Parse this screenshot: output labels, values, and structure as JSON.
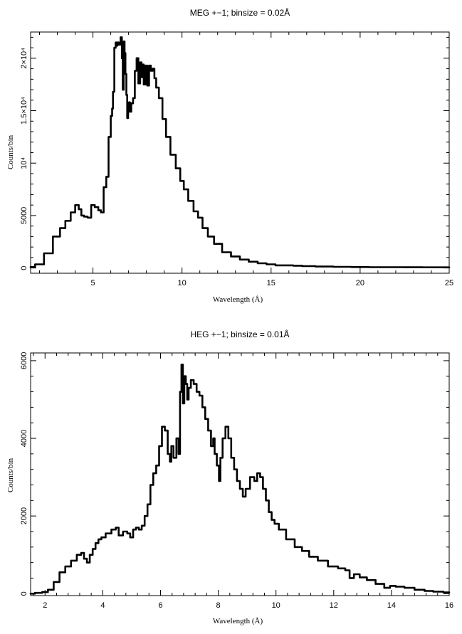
{
  "chart_data": [
    {
      "type": "line",
      "title": "MEG +−1; binsize = 0.02Å",
      "xlabel": "Wavelength (Å)",
      "ylabel": "Counts/bin",
      "xlim": [
        1.5,
        25
      ],
      "ylim": [
        -500,
        22500
      ],
      "xticks": [
        5,
        10,
        15,
        20,
        25
      ],
      "xtick_labels": [
        "5",
        "10",
        "15",
        "20",
        "25"
      ],
      "yticks": [
        0,
        5000,
        10000,
        15000,
        20000
      ],
      "ytick_labels": [
        "0",
        "5000",
        "10⁴",
        "1.5×10⁴",
        "2×10⁴"
      ],
      "grid": false,
      "legend": "none",
      "series": [
        {
          "x": [
            1.5,
            2.0,
            2.5,
            3.0,
            3.3,
            3.6,
            3.9,
            4.1,
            4.3,
            4.4,
            4.6,
            4.8,
            5.0,
            5.2,
            5.4,
            5.5,
            5.7,
            5.8,
            5.95,
            6.05,
            6.1,
            6.15,
            6.25,
            6.3,
            6.35,
            6.4,
            6.5,
            6.6,
            6.65,
            6.7,
            6.75,
            6.8,
            6.85,
            6.9,
            6.95,
            7.0,
            7.05,
            7.1,
            7.2,
            7.3,
            7.4,
            7.5,
            7.6,
            7.7,
            7.75,
            7.8,
            7.9,
            8.0,
            8.1,
            8.2,
            8.3,
            8.4,
            8.5,
            8.6,
            8.8,
            9.0,
            9.2,
            9.5,
            9.8,
            10.0,
            10.2,
            10.5,
            10.8,
            11.0,
            11.3,
            11.6,
            12.0,
            12.5,
            13.0,
            13.5,
            14.0,
            14.5,
            15.0,
            15.5,
            16.0,
            16.5,
            17.0,
            18.0,
            19.0,
            20.0,
            21.0,
            22.0,
            23.0,
            24.0,
            25.0
          ],
          "y": [
            100,
            350,
            1400,
            3000,
            3800,
            4500,
            5300,
            6000,
            5600,
            5000,
            4900,
            4800,
            6000,
            5800,
            5500,
            5300,
            7700,
            8700,
            12500,
            14500,
            15200,
            16800,
            21000,
            21500,
            21200,
            21500,
            21300,
            22000,
            20000,
            17000,
            21600,
            20500,
            18500,
            16500,
            14300,
            15600,
            15800,
            14900,
            15700,
            16200,
            18800,
            20000,
            17600,
            19600,
            18200,
            19400,
            17500,
            19300,
            17400,
            19300,
            18800,
            19000,
            18100,
            17200,
            16200,
            14200,
            12500,
            10800,
            9500,
            8300,
            7500,
            6400,
            5400,
            4800,
            3800,
            3000,
            2300,
            1500,
            1100,
            800,
            600,
            450,
            350,
            250,
            250,
            220,
            180,
            140,
            110,
            90,
            80,
            75,
            70,
            65,
            60
          ]
        }
      ]
    },
    {
      "type": "line",
      "title": "HEG +−1; binsize = 0.01Å",
      "xlabel": "Wavelength (Å)",
      "ylabel": "Counts/bin",
      "xlim": [
        1.5,
        16
      ],
      "ylim": [
        -50,
        6200
      ],
      "xticks": [
        2,
        4,
        6,
        8,
        10,
        12,
        14,
        16
      ],
      "xtick_labels": [
        "2",
        "4",
        "6",
        "8",
        "10",
        "12",
        "14",
        "16"
      ],
      "yticks": [
        0,
        2000,
        4000,
        6000
      ],
      "ytick_labels": [
        "0",
        "2000",
        "4000",
        "6000"
      ],
      "grid": false,
      "legend": "none",
      "series": [
        {
          "x": [
            1.5,
            1.8,
            2.0,
            2.2,
            2.4,
            2.6,
            2.8,
            3.0,
            3.2,
            3.3,
            3.4,
            3.5,
            3.6,
            3.7,
            3.8,
            3.9,
            4.0,
            4.2,
            4.4,
            4.5,
            4.6,
            4.8,
            4.9,
            5.0,
            5.1,
            5.2,
            5.3,
            5.4,
            5.5,
            5.6,
            5.7,
            5.8,
            5.9,
            6.0,
            6.1,
            6.2,
            6.3,
            6.35,
            6.4,
            6.5,
            6.6,
            6.65,
            6.7,
            6.75,
            6.8,
            6.85,
            6.9,
            6.95,
            7.0,
            7.1,
            7.2,
            7.3,
            7.4,
            7.5,
            7.6,
            7.7,
            7.8,
            7.85,
            7.9,
            8.0,
            8.05,
            8.1,
            8.2,
            8.3,
            8.4,
            8.5,
            8.6,
            8.7,
            8.8,
            8.9,
            9.0,
            9.2,
            9.3,
            9.4,
            9.5,
            9.6,
            9.7,
            9.8,
            9.9,
            10.0,
            10.2,
            10.5,
            10.8,
            11.0,
            11.3,
            11.6,
            12.0,
            12.3,
            12.5,
            12.6,
            12.8,
            13.0,
            13.3,
            13.6,
            13.9,
            14.0,
            14.3,
            14.6,
            15.0,
            15.3,
            15.6,
            16.0
          ],
          "y": [
            0,
            20,
            40,
            100,
            300,
            550,
            700,
            850,
            1000,
            1050,
            900,
            800,
            1000,
            1150,
            1300,
            1400,
            1450,
            1550,
            1650,
            1700,
            1500,
            1600,
            1550,
            1450,
            1650,
            1700,
            1650,
            1750,
            2000,
            2300,
            2800,
            3100,
            3300,
            3800,
            4300,
            4200,
            3600,
            3400,
            3800,
            3500,
            4000,
            3600,
            5200,
            5900,
            4900,
            5600,
            5400,
            5000,
            5300,
            5500,
            5400,
            5200,
            5100,
            4800,
            4500,
            4200,
            3800,
            4000,
            3600,
            3300,
            2900,
            3500,
            4000,
            4300,
            4000,
            3500,
            3200,
            2900,
            2700,
            2500,
            2700,
            3000,
            2900,
            3100,
            3000,
            2700,
            2400,
            2100,
            1900,
            1800,
            1650,
            1400,
            1200,
            1100,
            950,
            850,
            700,
            650,
            600,
            400,
            500,
            420,
            350,
            250,
            150,
            200,
            180,
            150,
            100,
            70,
            50,
            30
          ]
        }
      ]
    }
  ]
}
